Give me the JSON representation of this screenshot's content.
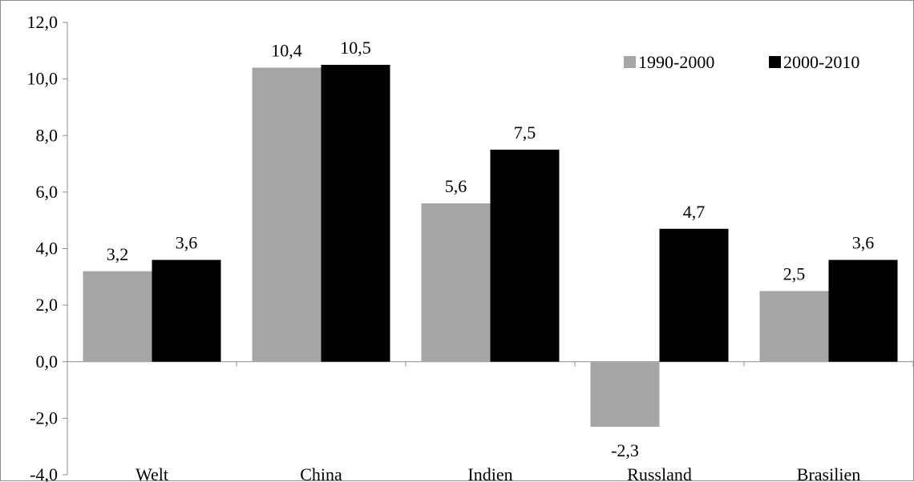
{
  "chart_data": {
    "type": "bar",
    "categories": [
      "Welt",
      "China",
      "Indien",
      "Russland",
      "Brasilien"
    ],
    "series": [
      {
        "name": "1990-2000",
        "values": [
          3.2,
          10.4,
          5.6,
          -2.3,
          2.5
        ],
        "labels": [
          "3,2",
          "10,4",
          "5,6",
          "-2,3",
          "2,5"
        ],
        "color": "#a6a6a6"
      },
      {
        "name": "2000-2010",
        "values": [
          3.6,
          10.5,
          7.5,
          4.7,
          3.6
        ],
        "labels": [
          "3,6",
          "10,5",
          "7,5",
          "4,7",
          "3,6"
        ],
        "color": "#000000"
      }
    ],
    "ylim": [
      -4.0,
      12.0
    ],
    "yticks": [
      -4,
      -2,
      0,
      2,
      4,
      6,
      8,
      10,
      12
    ],
    "ytick_labels": [
      "-4,0",
      "-2,0",
      "0,0",
      "2,0",
      "4,0",
      "6,0",
      "8,0",
      "10,0",
      "12,0"
    ],
    "title": "",
    "xlabel": "",
    "ylabel": "",
    "grid": false,
    "legend_position": "top-right"
  }
}
